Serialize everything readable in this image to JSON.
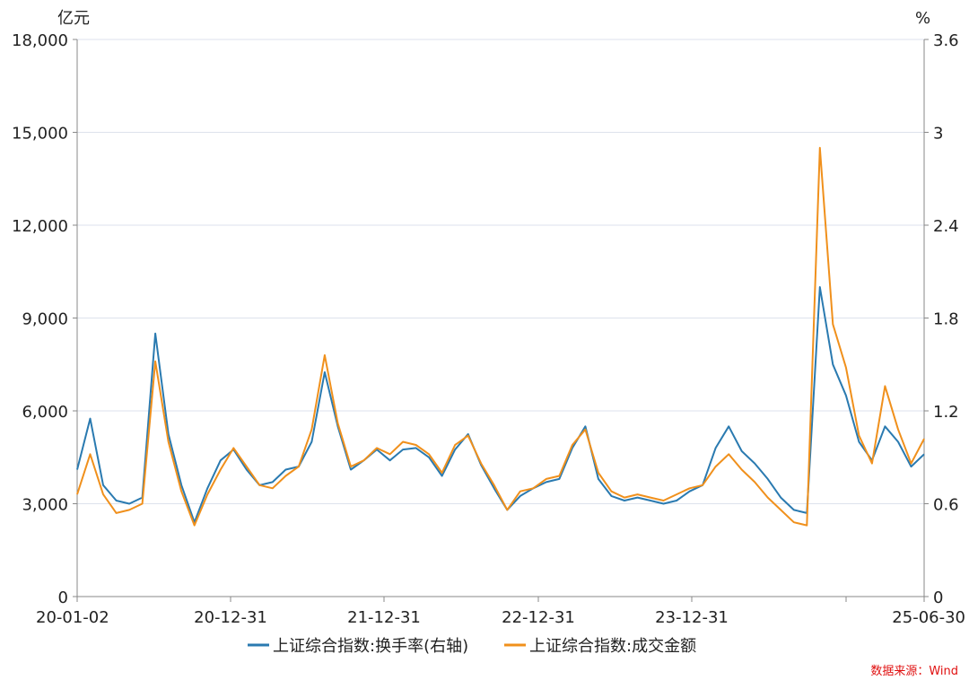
{
  "chart_data": {
    "type": "line",
    "left_unit": "亿元",
    "right_unit": "%",
    "left_ticks": [
      "18,000",
      "15,000",
      "12,000",
      "9,000",
      "6,000",
      "3,000",
      "0"
    ],
    "right_ticks": [
      "3.6",
      "3",
      "2.4",
      "1.8",
      "1.2",
      "0.6",
      "0"
    ],
    "x_ticks": [
      "20-01-02",
      "20-12-31",
      "21-12-31",
      "22-12-31",
      "23-12-31",
      "25-06-30"
    ],
    "ylim_left": [
      0,
      18000
    ],
    "ylim_right": [
      0,
      3.6
    ],
    "x": [
      "2020-01",
      "2020-02",
      "2020-03",
      "2020-04",
      "2020-05",
      "2020-06",
      "2020-07",
      "2020-08",
      "2020-09",
      "2020-10",
      "2020-11",
      "2020-12",
      "2021-01",
      "2021-02",
      "2021-03",
      "2021-04",
      "2021-05",
      "2021-06",
      "2021-07",
      "2021-08",
      "2021-09",
      "2021-10",
      "2021-11",
      "2021-12",
      "2022-01",
      "2022-02",
      "2022-03",
      "2022-04",
      "2022-05",
      "2022-06",
      "2022-07",
      "2022-08",
      "2022-09",
      "2022-10",
      "2022-11",
      "2022-12",
      "2023-01",
      "2023-02",
      "2023-03",
      "2023-04",
      "2023-05",
      "2023-06",
      "2023-07",
      "2023-08",
      "2023-09",
      "2023-10",
      "2023-11",
      "2023-12",
      "2024-01",
      "2024-02",
      "2024-03",
      "2024-04",
      "2024-05",
      "2024-06",
      "2024-07",
      "2024-08",
      "2024-09",
      "2024-10",
      "2024-11",
      "2024-12",
      "2025-01",
      "2025-02",
      "2025-03",
      "2025-04",
      "2025-05",
      "2025-06"
    ],
    "series": [
      {
        "name": "上证综合指数:换手率(右轴)",
        "axis": "right",
        "color": "#2a7ab0",
        "values": [
          0.82,
          1.15,
          0.72,
          0.62,
          0.6,
          0.64,
          1.7,
          1.05,
          0.72,
          0.48,
          0.7,
          0.88,
          0.95,
          0.82,
          0.72,
          0.74,
          0.82,
          0.84,
          1.0,
          1.45,
          1.1,
          0.82,
          0.88,
          0.95,
          0.88,
          0.95,
          0.96,
          0.9,
          0.78,
          0.95,
          1.05,
          0.85,
          0.7,
          0.56,
          0.65,
          0.7,
          0.74,
          0.76,
          0.96,
          1.1,
          0.76,
          0.65,
          0.62,
          0.64,
          0.62,
          0.6,
          0.62,
          0.68,
          0.72,
          0.96,
          1.1,
          0.94,
          0.86,
          0.76,
          0.64,
          0.56,
          0.54,
          2.0,
          1.5,
          1.3,
          1.0,
          0.88,
          1.1,
          1.0,
          0.84,
          0.92
        ]
      },
      {
        "name": "上证综合指数:成交金额",
        "axis": "left",
        "color": "#f0901c",
        "values": [
          3300,
          4600,
          3300,
          2700,
          2800,
          3000,
          7600,
          5000,
          3400,
          2300,
          3300,
          4100,
          4800,
          4200,
          3600,
          3500,
          3900,
          4200,
          5400,
          7800,
          5600,
          4200,
          4400,
          4800,
          4600,
          5000,
          4900,
          4600,
          4000,
          4900,
          5200,
          4300,
          3600,
          2800,
          3400,
          3500,
          3800,
          3900,
          4900,
          5400,
          4000,
          3400,
          3200,
          3300,
          3200,
          3100,
          3300,
          3500,
          3600,
          4200,
          4600,
          4100,
          3700,
          3200,
          2800,
          2400,
          2300,
          14500,
          8800,
          7400,
          5200,
          4300,
          6800,
          5400,
          4300,
          5100
        ]
      }
    ],
    "grid": true,
    "legend_position": "bottom"
  },
  "source_label": "数据来源：Wind"
}
